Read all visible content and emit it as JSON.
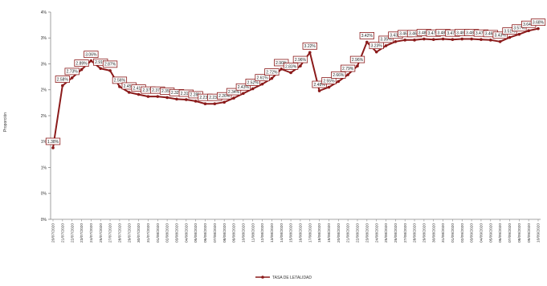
{
  "chart_data": {
    "type": "line",
    "title": "",
    "xlabel": "",
    "ylabel": "Proporción",
    "ylim": [
      0,
      4
    ],
    "yticks": [
      "0%",
      "0%",
      "1%",
      "1%",
      "2%",
      "2%",
      "3%",
      "3%",
      "4%"
    ],
    "grid": false,
    "legend_position": "bottom",
    "series": [
      {
        "name": "TASA DE LETALIDAD",
        "color": "#8b1a1a",
        "values": [
          1.38,
          2.58,
          2.73,
          2.89,
          3.06,
          2.91,
          2.87,
          2.56,
          2.45,
          2.41,
          2.37,
          2.37,
          2.35,
          2.32,
          2.31,
          2.28,
          2.23,
          2.23,
          2.26,
          2.34,
          2.43,
          2.52,
          2.61,
          2.72,
          2.9,
          2.83,
          2.96,
          3.22,
          2.48,
          2.55,
          2.66,
          2.79,
          2.96,
          3.42,
          3.23,
          3.35,
          3.43,
          3.46,
          3.46,
          3.48,
          3.47,
          3.48,
          3.47,
          3.48,
          3.48,
          3.47,
          3.46,
          3.43,
          3.51,
          3.57,
          3.64,
          3.68
        ],
        "labels": [
          "1.38%",
          "2.58%",
          "2.73%",
          "2.89%",
          "3.06%",
          "2.91%",
          "2.87%",
          "2.56%",
          "2.45%",
          "2.41%",
          "2.37%",
          "2.37%",
          "2.35%",
          "2.32%",
          "2.31%",
          "2.28%",
          "2.23%",
          "2.23%",
          "2.26%",
          "2.34%",
          "2.43%",
          "2.52%",
          "2.61%",
          "2.72%",
          "2.90%",
          "2.83%",
          "2.96%",
          "3.22%",
          "2.48%",
          "2.55%",
          "2.66%",
          "2.79%",
          "2.96%",
          "3.42%",
          "3.23%",
          "3.35%",
          "3.43%",
          "3.46%",
          "3.46%",
          "3.48%",
          "3.47%",
          "3.48%",
          "3.47%",
          "3.48%",
          "3.48%",
          "3.47%",
          "3.46%",
          "3.43%",
          "3.51%",
          "3.57%",
          "3.64%",
          "3.68%"
        ],
        "visible_labels": [
          "1.38%",
          "2.58%",
          "2.73%",
          "2.89%",
          "3.06%",
          "2.91%",
          "2.87%",
          "2.56%",
          "2.45%",
          "2.41%",
          "2.37%",
          "2.37%",
          "2.35%",
          "2.32%",
          "2.31%",
          "2.28%",
          "2.23%",
          "2.23%",
          "2.26%",
          "2.34%",
          "2.43%",
          "2.52%",
          "2.61%",
          "2.72%",
          "2.90%",
          "2.83%",
          "2.96%",
          "3.22%",
          "2.48%",
          "2.55%",
          "2.66%",
          "2.79%",
          "2.96%",
          "3.42%",
          "3.23%",
          "3.35%",
          "3.43%",
          "3.46%",
          "3.46%",
          "3.48%",
          "3.47%",
          "3.48%",
          "3.47%",
          "3.48%",
          "3.48%",
          "3.47%",
          "3.46%",
          "3.43%",
          "3.51%",
          "3.57%",
          "3.64%",
          "3.68%"
        ]
      }
    ],
    "categories": [
      "20/07/2020",
      "21/07/2020",
      "22/07/2020",
      "23/07/2020",
      "24/07/2020",
      "25/07/2020",
      "27/07/2020",
      "28/07/2020",
      "29/07/2020",
      "30/07/2020",
      "31/07/2020",
      "01/08/2020",
      "02/08/2020",
      "03/08/2020",
      "04/08/2020",
      "05/08/2020",
      "06/08/2020",
      "07/08/2020",
      "08/08/2020",
      "09/08/2020",
      "10/08/2020",
      "11/08/2020",
      "12/08/2020",
      "13/08/2020",
      "14/08/2020",
      "15/08/2020",
      "16/08/2020",
      "17/08/2020",
      "18/08/2020",
      "19/08/2020",
      "20/08/2020",
      "21/08/2020",
      "22/08/2020",
      "23/08/2020",
      "24/08/2020",
      "25/08/2020",
      "26/08/2020",
      "27/08/2020",
      "28/08/2020",
      "29/08/2020",
      "30/08/2020",
      "31/08/2020",
      "01/09/2020",
      "02/09/2020",
      "03/09/2020",
      "04/09/2020",
      "05/09/2020",
      "06/09/2020",
      "07/09/2020",
      "08/09/2020",
      "09/09/2020",
      "10/09/2020"
    ]
  }
}
